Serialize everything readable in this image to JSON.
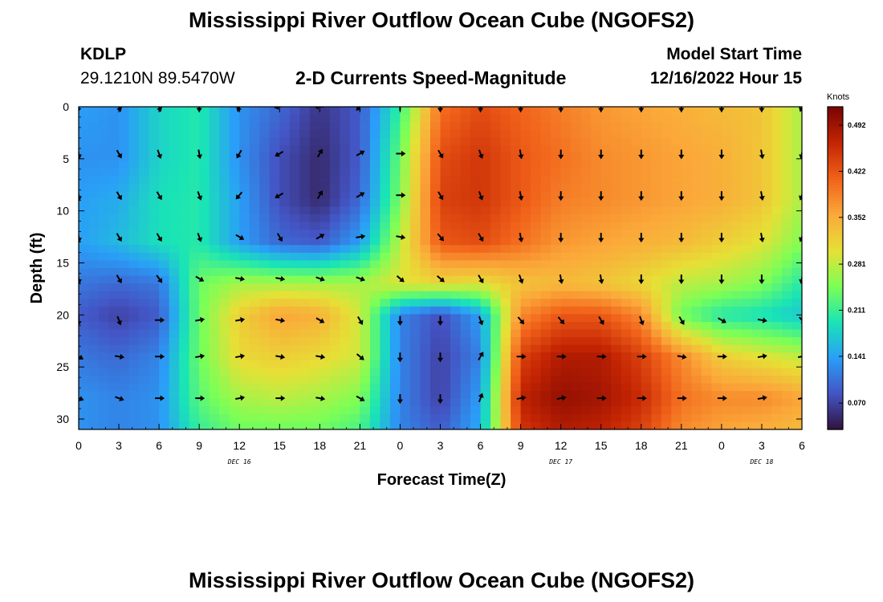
{
  "page": {
    "title_top": "Mississippi River Outflow Ocean Cube (NGOFS2)",
    "title_bottom": "Mississippi River Outflow Ocean Cube (NGOFS2)",
    "station_id": "KDLP",
    "station_coords": "29.1210N  89.5470W",
    "plot_title": "2-D Currents Speed-Magnitude",
    "model_start_label": "Model Start Time",
    "model_start_value": "12/16/2022 Hour 15"
  },
  "chart_data": {
    "type": "heatmap",
    "title": "2-D Currents Speed-Magnitude",
    "xlabel": "Forecast Time(Z)",
    "ylabel": "Depth (ft)",
    "x_tick_labels": [
      "0",
      "3",
      "6",
      "9",
      "12",
      "15",
      "18",
      "21",
      "0",
      "3",
      "6",
      "9",
      "12",
      "15",
      "18",
      "21",
      "0",
      "3",
      "6"
    ],
    "x_range_hours": [
      0,
      54
    ],
    "day_labels": [
      {
        "label": "DEC 16",
        "hour": 12
      },
      {
        "label": "DEC 17",
        "hour": 36
      },
      {
        "label": "DEC 18",
        "hour": 51
      }
    ],
    "y_tick_labels": [
      "0",
      "5",
      "10",
      "15",
      "20",
      "25",
      "30"
    ],
    "ylim": [
      0,
      31
    ],
    "y_reversed": true,
    "colorbar": {
      "unit": "Knots",
      "labels": [
        "0.492",
        "0.422",
        "0.352",
        "0.281",
        "0.211",
        "0.141",
        "0.070"
      ],
      "range": [
        0.03,
        0.52
      ],
      "colors": [
        "#30123b",
        "#4454c4",
        "#2a9ef8",
        "#1ae4b6",
        "#7cff56",
        "#e6e036",
        "#fba93a",
        "#f1621a",
        "#c42503",
        "#7a0403"
      ]
    },
    "speed_rows": [
      {
        "depth": 0,
        "values": [
          0.14,
          0.13,
          0.18,
          0.2,
          0.13,
          0.1,
          0.06,
          0.09,
          0.21,
          0.4,
          0.43,
          0.41,
          0.39,
          0.37,
          0.36,
          0.35,
          0.34,
          0.33,
          0.27
        ]
      },
      {
        "depth": 5,
        "values": [
          0.13,
          0.13,
          0.18,
          0.2,
          0.13,
          0.08,
          0.05,
          0.09,
          0.24,
          0.43,
          0.45,
          0.42,
          0.4,
          0.38,
          0.37,
          0.36,
          0.35,
          0.33,
          0.27
        ]
      },
      {
        "depth": 9,
        "values": [
          0.14,
          0.15,
          0.19,
          0.2,
          0.14,
          0.08,
          0.05,
          0.1,
          0.25,
          0.44,
          0.45,
          0.42,
          0.39,
          0.38,
          0.37,
          0.36,
          0.35,
          0.33,
          0.27
        ]
      },
      {
        "depth": 13,
        "values": [
          0.14,
          0.16,
          0.19,
          0.2,
          0.14,
          0.1,
          0.09,
          0.14,
          0.28,
          0.42,
          0.43,
          0.4,
          0.37,
          0.36,
          0.35,
          0.34,
          0.32,
          0.3,
          0.25
        ]
      },
      {
        "depth": 17,
        "values": [
          0.11,
          0.1,
          0.11,
          0.24,
          0.27,
          0.27,
          0.27,
          0.27,
          0.3,
          0.31,
          0.3,
          0.33,
          0.34,
          0.33,
          0.31,
          0.28,
          0.27,
          0.25,
          0.2
        ]
      },
      {
        "depth": 20,
        "values": [
          0.09,
          0.07,
          0.09,
          0.24,
          0.32,
          0.36,
          0.35,
          0.29,
          0.12,
          0.08,
          0.14,
          0.38,
          0.42,
          0.42,
          0.38,
          0.24,
          0.2,
          0.19,
          0.17
        ]
      },
      {
        "depth": 24,
        "values": [
          0.11,
          0.1,
          0.12,
          0.24,
          0.31,
          0.32,
          0.31,
          0.29,
          0.12,
          0.07,
          0.12,
          0.44,
          0.48,
          0.48,
          0.44,
          0.38,
          0.32,
          0.3,
          0.28
        ]
      },
      {
        "depth": 28,
        "values": [
          0.13,
          0.12,
          0.13,
          0.23,
          0.27,
          0.28,
          0.27,
          0.25,
          0.12,
          0.07,
          0.14,
          0.47,
          0.5,
          0.49,
          0.46,
          0.4,
          0.38,
          0.38,
          0.36
        ]
      },
      {
        "depth": 31,
        "values": [
          0.13,
          0.12,
          0.13,
          0.21,
          0.24,
          0.24,
          0.24,
          0.22,
          0.12,
          0.09,
          0.15,
          0.45,
          0.48,
          0.47,
          0.44,
          0.38,
          0.36,
          0.35,
          0.34
        ]
      }
    ],
    "arrow_depths": [
      0,
      4.5,
      8.5,
      12.5,
      16.5,
      20.5,
      24,
      28
    ],
    "arrow_directions_deg": [
      [
        190,
        160,
        160,
        180,
        200,
        260,
        270,
        225,
        0,
        180,
        180,
        180,
        180,
        180,
        180,
        180,
        180,
        180,
        200
      ],
      [
        170,
        150,
        160,
        170,
        210,
        240,
        30,
        60,
        90,
        150,
        160,
        170,
        180,
        180,
        180,
        180,
        180,
        170,
        190
      ],
      [
        170,
        150,
        150,
        160,
        220,
        240,
        30,
        60,
        90,
        150,
        160,
        170,
        180,
        180,
        180,
        180,
        180,
        170,
        200
      ],
      [
        170,
        150,
        150,
        160,
        120,
        150,
        60,
        80,
        100,
        140,
        150,
        170,
        180,
        180,
        180,
        180,
        180,
        170,
        200
      ],
      [
        170,
        150,
        145,
        120,
        100,
        100,
        110,
        110,
        130,
        130,
        150,
        160,
        170,
        170,
        180,
        180,
        180,
        180,
        190
      ],
      [
        180,
        160,
        90,
        80,
        80,
        100,
        120,
        150,
        180,
        180,
        160,
        140,
        140,
        150,
        160,
        150,
        120,
        100,
        140
      ],
      [
        120,
        100,
        90,
        80,
        80,
        100,
        100,
        130,
        180,
        180,
        30,
        90,
        90,
        90,
        90,
        100,
        90,
        80,
        80
      ],
      [
        110,
        110,
        90,
        90,
        80,
        90,
        100,
        120,
        180,
        180,
        20,
        80,
        80,
        90,
        90,
        90,
        90,
        80,
        80
      ]
    ]
  }
}
